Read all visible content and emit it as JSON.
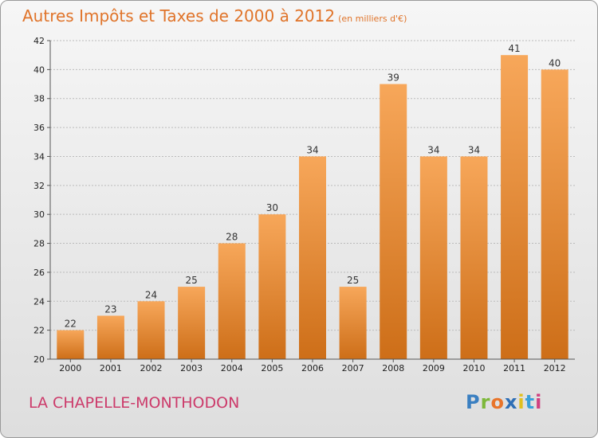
{
  "header": {
    "title": "Autres Impôts et Taxes de 2000 à 2012",
    "unit": "(en milliers d'€)"
  },
  "footer": {
    "commune": "LA CHAPELLE-MONTHODON",
    "logo_letters": [
      "P",
      "r",
      "o",
      "x",
      "i",
      "t",
      "i"
    ]
  },
  "colors": {
    "title": "#e0742a",
    "commune": "#cc3a6a",
    "bar_light": "#f7a75a",
    "bar_dark": "#cd6e18",
    "logo": [
      "#3a7fc1",
      "#7db83a",
      "#e8742a",
      "#2f6fb6",
      "#e0c020",
      "#3aa0d8",
      "#d04080"
    ]
  },
  "chart_data": {
    "type": "bar",
    "title": "Autres Impôts et Taxes de 2000 à 2012",
    "categories": [
      "2000",
      "2001",
      "2002",
      "2003",
      "2004",
      "2005",
      "2006",
      "2007",
      "2008",
      "2009",
      "2010",
      "2011",
      "2012"
    ],
    "values": [
      22,
      23,
      24,
      25,
      28,
      30,
      34,
      25,
      39,
      34,
      34,
      41,
      40
    ],
    "ylim": [
      20,
      42
    ],
    "yticks": [
      20,
      22,
      24,
      26,
      28,
      30,
      32,
      34,
      36,
      38,
      40,
      42
    ],
    "grid": true
  }
}
